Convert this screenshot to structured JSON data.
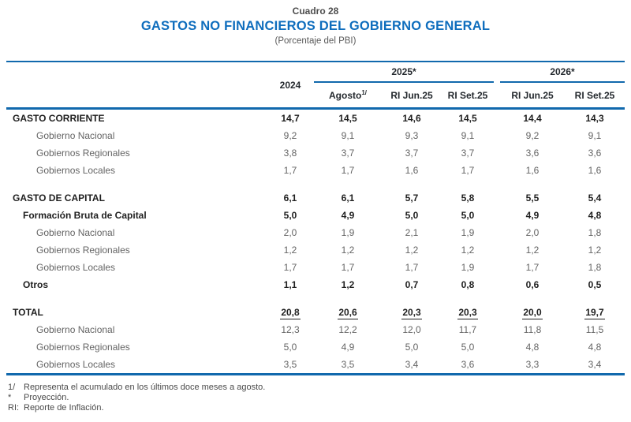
{
  "document": {
    "kicker": "Cuadro 28",
    "title": "GASTOS NO FINANCIEROS DEL GOBIERNO GENERAL",
    "subtitle": "(Porcentaje del PBI)"
  },
  "table": {
    "year_col": "2024",
    "groups": [
      {
        "label": "2025*",
        "columns": [
          {
            "label": "Agosto",
            "sup": "1/"
          },
          {
            "label": "RI Jun.25"
          },
          {
            "label": "RI Set.25"
          }
        ]
      },
      {
        "label": "2026*",
        "columns": [
          {
            "label": "RI Jun.25"
          },
          {
            "label": "RI Set.25"
          }
        ]
      }
    ],
    "rows": [
      {
        "label": "GASTO CORRIENTE",
        "style": "main",
        "values": [
          "14,7",
          "14,5",
          "14,6",
          "14,5",
          "14,4",
          "14,3"
        ]
      },
      {
        "label": "Gobierno Nacional",
        "style": "sub",
        "values": [
          "9,2",
          "9,1",
          "9,3",
          "9,1",
          "9,2",
          "9,1"
        ]
      },
      {
        "label": "Gobiernos Regionales",
        "style": "sub",
        "values": [
          "3,8",
          "3,7",
          "3,7",
          "3,7",
          "3,6",
          "3,6"
        ]
      },
      {
        "label": "Gobiernos Locales",
        "style": "sub",
        "values": [
          "1,7",
          "1,7",
          "1,6",
          "1,7",
          "1,6",
          "1,6"
        ],
        "gap_after": true
      },
      {
        "label": "GASTO DE CAPITAL",
        "style": "main",
        "values": [
          "6,1",
          "6,1",
          "5,7",
          "5,8",
          "5,5",
          "5,4"
        ]
      },
      {
        "label": "Formación Bruta de Capital",
        "style": "mid",
        "values": [
          "5,0",
          "4,9",
          "5,0",
          "5,0",
          "4,9",
          "4,8"
        ]
      },
      {
        "label": "Gobierno Nacional",
        "style": "sub",
        "values": [
          "2,0",
          "1,9",
          "2,1",
          "1,9",
          "2,0",
          "1,8"
        ]
      },
      {
        "label": "Gobiernos Regionales",
        "style": "sub",
        "values": [
          "1,2",
          "1,2",
          "1,2",
          "1,2",
          "1,2",
          "1,2"
        ]
      },
      {
        "label": "Gobiernos Locales",
        "style": "sub",
        "values": [
          "1,7",
          "1,7",
          "1,7",
          "1,9",
          "1,7",
          "1,8"
        ]
      },
      {
        "label": "Otros",
        "style": "mid",
        "values": [
          "1,1",
          "1,2",
          "0,7",
          "0,8",
          "0,6",
          "0,5"
        ],
        "gap_after": true
      },
      {
        "label": "TOTAL",
        "style": "total",
        "values": [
          "20,8",
          "20,6",
          "20,3",
          "20,3",
          "20,0",
          "19,7"
        ],
        "underline_values": true
      },
      {
        "label": "Gobierno Nacional",
        "style": "sub",
        "values": [
          "12,3",
          "12,2",
          "12,0",
          "11,7",
          "11,8",
          "11,5"
        ]
      },
      {
        "label": "Gobiernos Regionales",
        "style": "sub",
        "values": [
          "5,0",
          "4,9",
          "5,0",
          "5,0",
          "4,8",
          "4,8"
        ]
      },
      {
        "label": "Gobiernos Locales",
        "style": "sub",
        "values": [
          "3,5",
          "3,5",
          "3,4",
          "3,6",
          "3,3",
          "3,4"
        ]
      }
    ]
  },
  "footnotes": [
    {
      "marker": "1/",
      "text": "Representa el acumulado en los últimos doce meses a agosto."
    },
    {
      "marker": "*",
      "text": "Proyección."
    },
    {
      "marker": "RI:",
      "text": "Reporte de Inflación."
    }
  ],
  "colors": {
    "rule_blue": "#1169ad",
    "title_blue": "#0e6dbd",
    "text_dark": "#1f1f1f",
    "text_gray": "#646464"
  }
}
